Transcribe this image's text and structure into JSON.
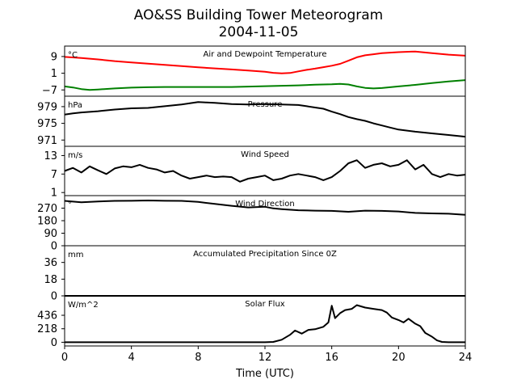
{
  "figure": {
    "title_line1": "AO&SS Building Tower Meteorogram",
    "title_line2": "2004-11-05",
    "xlabel": "Time (UTC)",
    "xlim": [
      0,
      24
    ],
    "xticks": [
      0,
      4,
      8,
      12,
      16,
      20,
      24
    ]
  },
  "chart_data": [
    {
      "type": "line",
      "title": "Air and Dewpoint Temperature",
      "unit": "°C",
      "ylim": [
        -10,
        14
      ],
      "yticks": [
        9,
        1,
        -7
      ],
      "series": [
        {
          "color": "#ff0000",
          "x": [
            0,
            1,
            2,
            3,
            4,
            5,
            6,
            7,
            8,
            9,
            10,
            11,
            12,
            12.5,
            13,
            13.5,
            14,
            14.5,
            15,
            15.5,
            16,
            16.5,
            17,
            17.5,
            18,
            18.5,
            19,
            20,
            21,
            21.5,
            22,
            23,
            24
          ],
          "y": [
            8.8,
            8.3,
            7.6,
            6.8,
            6.2,
            5.6,
            5.0,
            4.4,
            3.8,
            3.3,
            2.8,
            2.3,
            1.7,
            1.2,
            0.9,
            1.1,
            1.9,
            2.6,
            3.2,
            3.9,
            4.6,
            5.5,
            7.0,
            8.6,
            9.6,
            10.1,
            10.6,
            11.1,
            11.4,
            11.0,
            10.6,
            9.9,
            9.4
          ]
        },
        {
          "color": "#008000",
          "x": [
            0,
            0.5,
            1,
            1.5,
            2,
            3,
            4,
            5,
            6,
            7,
            8,
            9,
            10,
            11,
            12,
            13,
            14,
            15,
            16,
            16.5,
            17,
            17.5,
            18,
            18.5,
            19,
            20,
            21,
            22,
            23,
            24
          ],
          "y": [
            -5.3,
            -5.8,
            -6.6,
            -7.0,
            -6.8,
            -6.3,
            -5.9,
            -5.7,
            -5.6,
            -5.6,
            -5.6,
            -5.6,
            -5.6,
            -5.4,
            -5.2,
            -5.0,
            -4.8,
            -4.5,
            -4.3,
            -4.1,
            -4.4,
            -5.3,
            -6.0,
            -6.3,
            -6.1,
            -5.3,
            -4.6,
            -3.7,
            -2.9,
            -2.3
          ]
        }
      ]
    },
    {
      "type": "line",
      "title": "Pressure",
      "unit": "hPa",
      "ylim": [
        969.5,
        981.5
      ],
      "yticks": [
        979,
        975,
        971
      ],
      "series": [
        {
          "color": "#000000",
          "x": [
            0,
            0.5,
            1,
            2,
            3,
            4,
            5,
            6,
            7,
            7.5,
            8,
            8.5,
            9,
            10,
            11,
            12,
            13,
            14,
            14.5,
            15,
            15.5,
            16,
            16.5,
            17,
            17.5,
            18,
            18.5,
            19,
            19.5,
            20,
            21,
            22,
            23,
            24
          ],
          "y": [
            977.1,
            977.4,
            977.6,
            977.9,
            978.3,
            978.6,
            978.7,
            979.1,
            979.5,
            979.8,
            980.1,
            980.0,
            979.9,
            979.6,
            979.5,
            979.6,
            979.5,
            979.4,
            979.1,
            978.8,
            978.5,
            977.8,
            977.2,
            976.5,
            976.0,
            975.6,
            975.0,
            974.5,
            974.0,
            973.5,
            973.0,
            972.6,
            972.2,
            971.8
          ]
        }
      ]
    },
    {
      "type": "line",
      "title": "Wind Speed",
      "unit": "m/s",
      "ylim": [
        0,
        16
      ],
      "yticks": [
        13,
        7,
        1
      ],
      "series": [
        {
          "color": "#000000",
          "x": [
            0,
            0.5,
            1,
            1.5,
            2,
            2.5,
            3,
            3.5,
            4,
            4.5,
            5,
            5.5,
            6,
            6.5,
            7,
            7.5,
            8,
            8.5,
            9,
            9.5,
            10,
            10.5,
            11,
            11.5,
            12,
            12.5,
            13,
            13.5,
            14,
            14.5,
            15,
            15.5,
            16,
            16.5,
            17,
            17.5,
            18,
            18.5,
            19,
            19.5,
            20,
            20.5,
            21,
            21.5,
            22,
            22.5,
            23,
            23.5,
            24
          ],
          "y": [
            8.0,
            9.0,
            7.5,
            9.5,
            8.2,
            7.0,
            8.8,
            9.5,
            9.2,
            10.0,
            9.0,
            8.5,
            7.5,
            8.0,
            6.5,
            5.5,
            6.0,
            6.5,
            6.0,
            6.2,
            6.0,
            4.5,
            5.5,
            6.0,
            6.5,
            5.0,
            5.5,
            6.5,
            7.0,
            6.5,
            6.0,
            5.0,
            6.0,
            8.0,
            10.5,
            11.5,
            9.0,
            10.0,
            10.5,
            9.5,
            10.0,
            11.5,
            8.5,
            10.0,
            7.0,
            6.0,
            7.0,
            6.5,
            6.8
          ]
        }
      ]
    },
    {
      "type": "line",
      "title": "Wind Direction",
      "unit": "°",
      "ylim": [
        0,
        360
      ],
      "yticks": [
        270,
        180,
        90,
        0
      ],
      "series": [
        {
          "color": "#000000",
          "x": [
            0,
            1,
            2,
            3,
            4,
            5,
            6,
            7,
            8,
            9,
            10,
            11,
            12,
            12.5,
            13,
            14,
            15,
            16,
            17,
            18,
            19,
            20,
            21,
            22,
            23,
            24
          ],
          "y": [
            322,
            312,
            318,
            322,
            323,
            325,
            323,
            322,
            315,
            300,
            287,
            275,
            280,
            268,
            263,
            255,
            252,
            250,
            244,
            252,
            250,
            246,
            236,
            232,
            230,
            222
          ]
        }
      ]
    },
    {
      "type": "line",
      "title": "Accumulated Precipitation Since 0Z",
      "unit": "mm",
      "ylim": [
        0,
        54
      ],
      "yticks": [
        0,
        18,
        36
      ],
      "series": [
        {
          "color": "#000000",
          "x": [
            0,
            24
          ],
          "y": [
            0,
            0
          ]
        }
      ]
    },
    {
      "type": "line",
      "title": "Solar Flux",
      "unit": "W/m^2",
      "ylim": [
        -60,
        750
      ],
      "yticks": [
        0,
        218,
        436
      ],
      "series": [
        {
          "color": "#000000",
          "x": [
            0,
            11,
            12,
            12.5,
            13,
            13.5,
            13.8,
            14.2,
            14.6,
            15.0,
            15.5,
            15.8,
            16.0,
            16.2,
            16.5,
            16.8,
            17.2,
            17.5,
            18.0,
            18.5,
            19.0,
            19.3,
            19.6,
            20.0,
            20.3,
            20.6,
            21.0,
            21.3,
            21.6,
            22.0,
            22.3,
            22.6,
            23.0,
            24
          ],
          "y": [
            0,
            0,
            0,
            5,
            40,
            120,
            190,
            140,
            200,
            210,
            250,
            320,
            590,
            390,
            470,
            520,
            540,
            600,
            560,
            540,
            520,
            480,
            400,
            360,
            320,
            380,
            300,
            260,
            150,
            90,
            30,
            5,
            0,
            0
          ]
        }
      ]
    }
  ]
}
